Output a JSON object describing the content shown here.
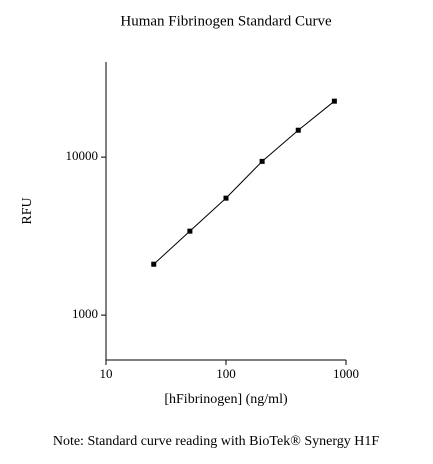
{
  "chart_data": {
    "type": "line",
    "title": "Human Fibrinogen Standard Curve",
    "x_label": "[hFibrinogen] (ng/ml)",
    "y_label": "RFU",
    "note": "Note: Standard curve reading with BioTek® Synergy H1F",
    "x": [
      25,
      50,
      100,
      200,
      400,
      800
    ],
    "series": [
      {
        "name": "RFU",
        "color": "#000000",
        "values": [
          2100,
          3400,
          5500,
          9400,
          14800,
          22600
        ]
      }
    ],
    "xlim": [
      10,
      1000
    ],
    "xticks": [
      10,
      100,
      1000
    ],
    "x_log": true,
    "ylim": [
      520,
      40000
    ],
    "yticks": [
      1000,
      10000
    ],
    "y_log": true,
    "grid": false
  }
}
